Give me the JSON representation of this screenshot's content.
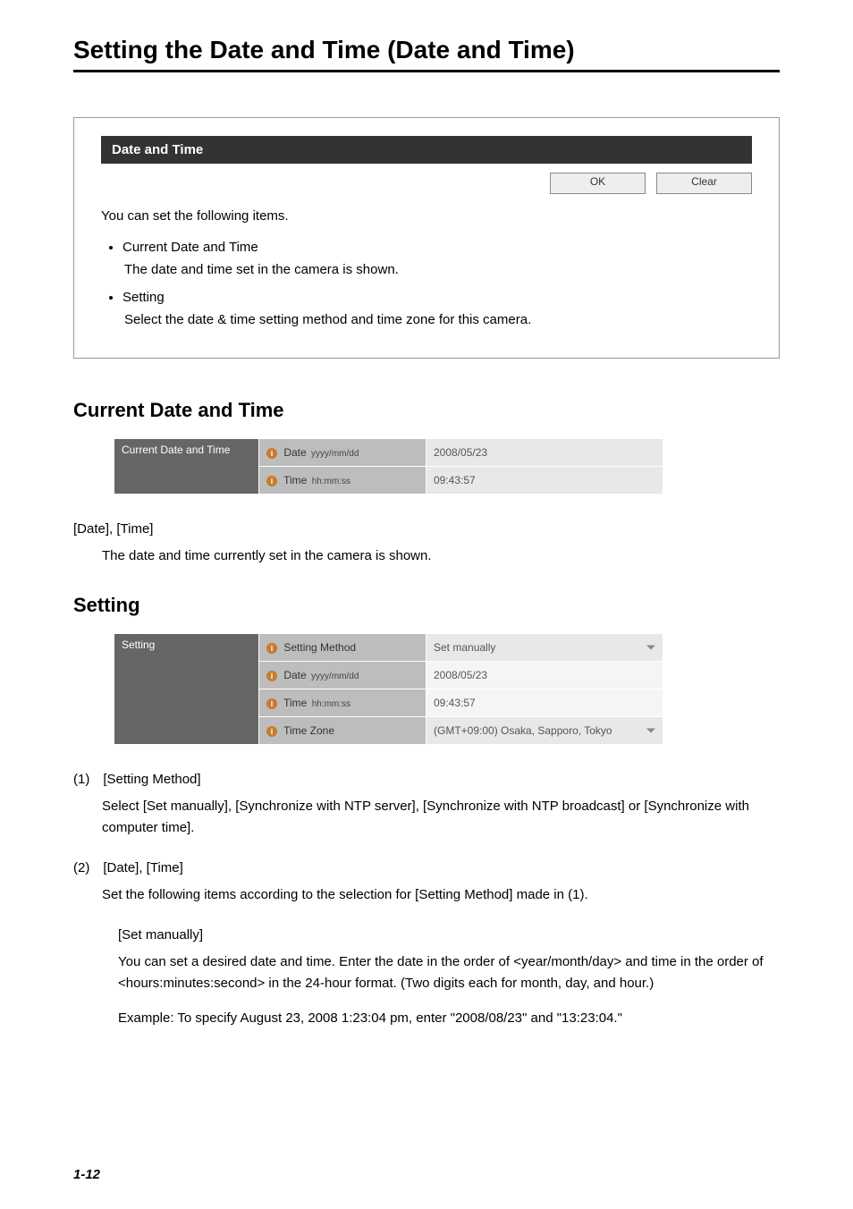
{
  "page_title": "Setting the Date and Time (Date and Time)",
  "intro_box": {
    "header": "Date and Time",
    "ok_button": "OK",
    "clear_button": "Clear",
    "lead": "You can set the following items.",
    "items": [
      {
        "title": "Current Date and Time",
        "desc": "The date and time set in the camera is shown."
      },
      {
        "title": "Setting",
        "desc": "Select the date & time setting method and time zone for this camera."
      }
    ]
  },
  "section_current": {
    "heading": "Current Date and Time",
    "table": {
      "rowhead": "Current Date and Time",
      "rows": [
        {
          "label": "Date",
          "sub": "yyyy/mm/dd",
          "value": "2008/05/23"
        },
        {
          "label": "Time",
          "sub": "hh:mm:ss",
          "value": "09:43:57"
        }
      ]
    },
    "field_line": "[Date], [Time]",
    "field_desc": "The date and time currently set in the camera is shown."
  },
  "section_setting": {
    "heading": "Setting",
    "table": {
      "rowhead": "Setting",
      "rows": [
        {
          "label": "Setting Method",
          "sub": "",
          "value": "Set manually",
          "dropdown": true,
          "input": false
        },
        {
          "label": "Date",
          "sub": "yyyy/mm/dd",
          "value": "2008/05/23",
          "dropdown": false,
          "input": true
        },
        {
          "label": "Time",
          "sub": "hh:mm:ss",
          "value": "09:43:57",
          "dropdown": false,
          "input": true
        },
        {
          "label": "Time Zone",
          "sub": "",
          "value": "(GMT+09:00) Osaka, Sapporo, Tokyo",
          "dropdown": true,
          "input": false
        }
      ]
    },
    "item1": {
      "line": "(1) [Setting Method]",
      "desc_parts": {
        "p1": "Select [",
        "opt1": "Set manually",
        "p2": "], [",
        "opt2": "Synchronize with NTP server",
        "p3": "], [",
        "opt3": "Synchronize with NTP broadcast",
        "p4": "] or [",
        "opt4": "Synchronize with computer time",
        "p5": "]."
      }
    },
    "item2": {
      "line": "(2) [Date], [Time]",
      "desc_parts": {
        "p1": "Set the following items according to the selection for [",
        "bold": "Setting Method",
        "p2": "] made in (1)."
      },
      "sub": {
        "title": "[Set manually]",
        "para1": "You can set a desired date and time. Enter the date in the order of <year/month/day> and time in the order of <hours:minutes:second> in the 24-hour format. (Two digits each for month, day, and hour.)",
        "para2": "Example: To specify August 23, 2008 1:23:04 pm, enter \"2008/08/23\" and \"13:23:04.\""
      }
    }
  },
  "page_number": "1-12"
}
